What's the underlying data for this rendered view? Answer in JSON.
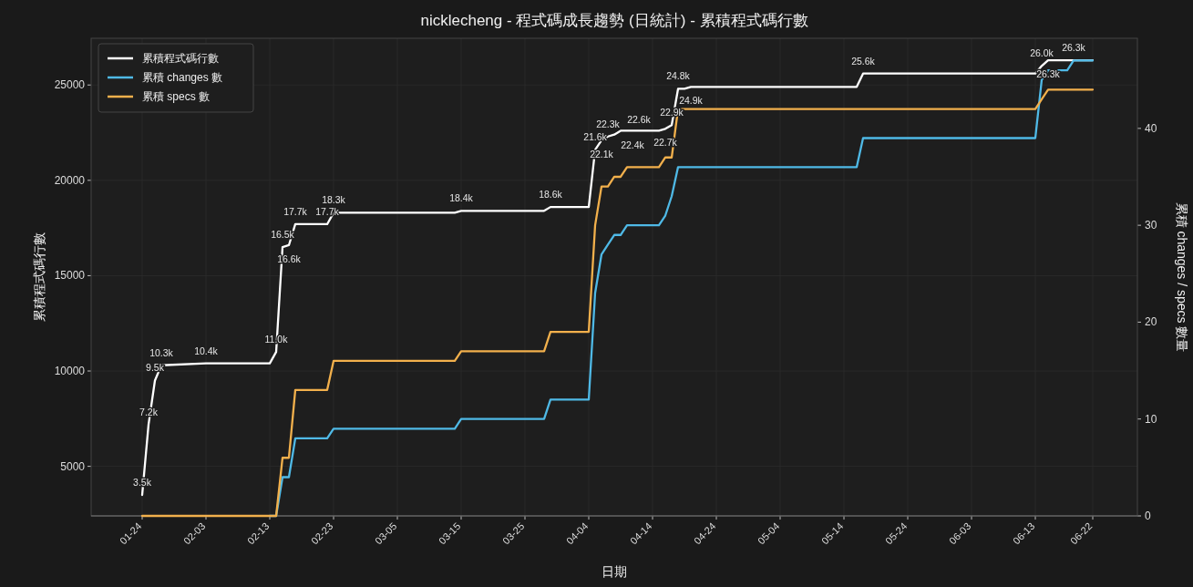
{
  "chart_data": {
    "type": "line",
    "title": "nicklecheng - 程式碼成長趨勢 (日統計) - 累積程式碼行數",
    "xlabel": "日期",
    "ylabel": "累積程式碼行數",
    "y2label": "累積 changes / specs 數量",
    "x": [
      "--01-24",
      "--01-25",
      "--01-26",
      "--01-27",
      "--02-03",
      "--02-13",
      "--02-14",
      "--02-15",
      "--02-16",
      "--02-17",
      "--02-22",
      "--02-23",
      "--03-14",
      "--03-15",
      "--03-28",
      "--03-29",
      "--04-04",
      "--04-05",
      "--04-06",
      "--04-07",
      "--04-08",
      "--04-09",
      "--04-10",
      "--04-15",
      "--04-16",
      "--04-17",
      "--04-18",
      "--04-19",
      "--04-20",
      "--05-16",
      "--05-17",
      "--06-13",
      "--06-14",
      "--06-15",
      "--06-18",
      "--06-19",
      "--06-22"
    ],
    "series": [
      {
        "name": "累積程式碼行數",
        "color": "#ffffff",
        "values": [
          3500,
          7200,
          9500,
          10300,
          10400,
          10400,
          11000,
          16500,
          16600,
          17700,
          17700,
          18300,
          18300,
          18400,
          18400,
          18600,
          18600,
          21600,
          22100,
          22300,
          22400,
          22600,
          22600,
          22600,
          22700,
          22900,
          24800,
          24800,
          24900,
          24900,
          25600,
          25600,
          26000,
          26300,
          26300,
          26300,
          26300
        ],
        "value_labels": [
          "3.5k",
          "7.2k",
          "9.5k",
          "10.3k",
          "10.4k",
          null,
          "11.0k",
          "16.5k",
          "16.6k",
          "17.7k",
          "17.7k",
          "18.3k",
          null,
          "18.4k",
          null,
          "18.6k",
          null,
          "21.6k",
          "22.1k",
          "22.3k",
          "22.4k",
          "22.6k",
          null,
          null,
          "22.7k",
          "22.9k",
          "24.8k",
          null,
          "24.9k",
          null,
          "25.6k",
          null,
          "26.0k",
          "26.3k",
          null,
          "26.3k",
          null
        ]
      },
      {
        "name": "累積 changes 數",
        "color": "#4fb9e6",
        "axis": "y2",
        "values": [
          null,
          null,
          null,
          null,
          null,
          0,
          0,
          4,
          4,
          8,
          8,
          9,
          9,
          10,
          10,
          12,
          12,
          23,
          27,
          28,
          29,
          29,
          30,
          30,
          31,
          33,
          36,
          36,
          36,
          36,
          39,
          39,
          45,
          46,
          46,
          47,
          47
        ]
      },
      {
        "name": "累積 specs 數",
        "color": "#f2b04c",
        "axis": "y2",
        "values": [
          0,
          0,
          0,
          0,
          0,
          0,
          0,
          6,
          6,
          13,
          13,
          16,
          16,
          17,
          17,
          19,
          19,
          30,
          34,
          34,
          35,
          35,
          36,
          36,
          37,
          37,
          42,
          42,
          42,
          42,
          42,
          42,
          43,
          44,
          44,
          44,
          44
        ]
      }
    ],
    "xlim": [
      "--01-16",
      "--06-29"
    ],
    "xticks": [
      {
        "value": "--01-24",
        "label": "01-24"
      },
      {
        "value": "--02-03",
        "label": "02-03"
      },
      {
        "value": "--02-13",
        "label": "02-13"
      },
      {
        "value": "--02-23",
        "label": "02-23"
      },
      {
        "value": "--03-05",
        "label": "03-05"
      },
      {
        "value": "--03-15",
        "label": "03-15"
      },
      {
        "value": "--03-25",
        "label": "03-25"
      },
      {
        "value": "--04-04",
        "label": "04-04"
      },
      {
        "value": "--04-14",
        "label": "04-14"
      },
      {
        "value": "--04-24",
        "label": "04-24"
      },
      {
        "value": "--05-04",
        "label": "05-04"
      },
      {
        "value": "--05-14",
        "label": "05-14"
      },
      {
        "value": "--05-24",
        "label": "05-24"
      },
      {
        "value": "--06-03",
        "label": "06-03"
      },
      {
        "value": "--06-13",
        "label": "06-13"
      },
      {
        "value": "--06-22",
        "label": "06-22"
      }
    ],
    "ylim": [
      2400,
      27450
    ],
    "yticks": [
      5000,
      10000,
      15000,
      20000,
      25000
    ],
    "y2lim": [
      0,
      49.3
    ],
    "y2ticks": [
      0,
      10,
      20,
      30,
      40
    ],
    "grid": true,
    "legend": "top left"
  }
}
